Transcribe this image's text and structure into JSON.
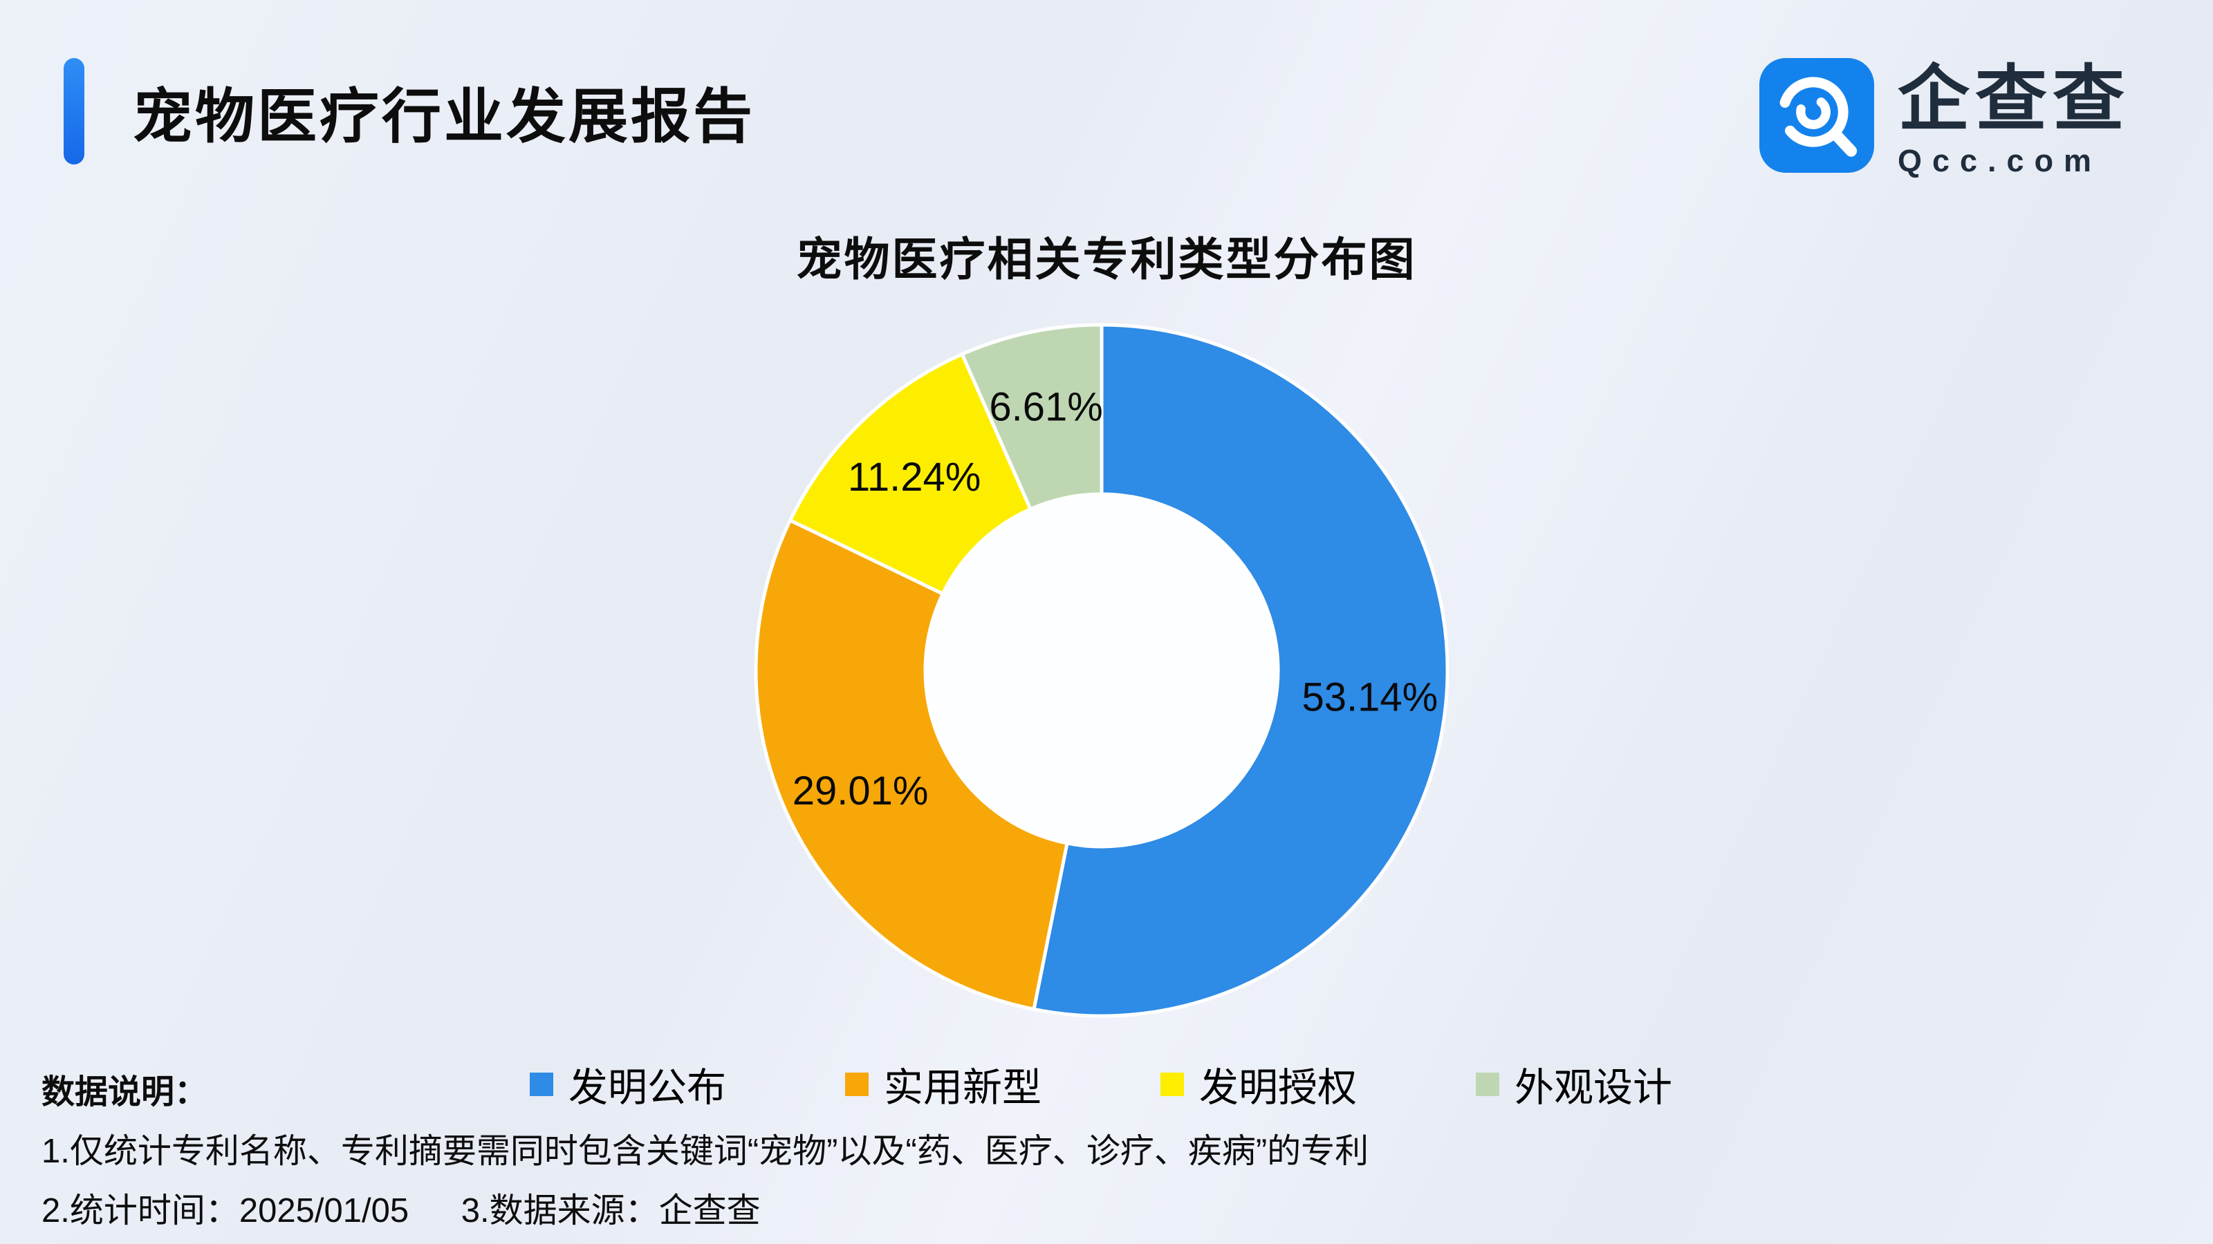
{
  "header": {
    "title": "宠物医疗行业发展报告",
    "logo": {
      "name": "企查查",
      "domain": "Qcc.com",
      "brand_color": "#1482EC"
    }
  },
  "chart_data": {
    "type": "pie",
    "subtype": "donut",
    "title": "宠物医疗相关专利类型分布图",
    "categories": [
      "发明公布",
      "实用新型",
      "发明授权",
      "外观设计"
    ],
    "values": [
      53.14,
      29.01,
      11.24,
      6.61
    ],
    "labels": [
      "53.14%",
      "29.01%",
      "11.24%",
      "6.61%"
    ],
    "colors": [
      "#2E8BE6",
      "#F7A708",
      "#FDEE00",
      "#BED7B2"
    ],
    "unit": "%",
    "start_angle_deg": 0,
    "direction": "clockwise",
    "legend_position": "bottom"
  },
  "footnotes": {
    "heading": "数据说明：",
    "notes": [
      "1.仅统计专利名称、专利摘要需同时包含关键词“宠物”以及“药、医疗、诊疗、疾病”的专利",
      "2.统计时间：2025/01/05",
      "3.数据来源：企查查"
    ]
  }
}
